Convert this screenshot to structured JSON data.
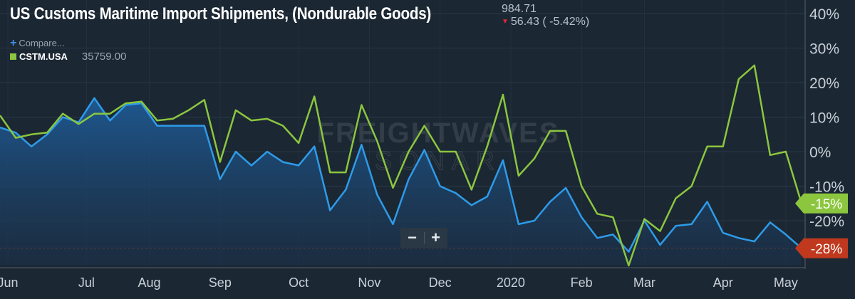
{
  "header": {
    "title": "US Customs Maritime Import Shipments, (Nondurable Goods)",
    "value": "984.71",
    "change": "56.43 ( -5.42%)",
    "compare_label": "Compare...",
    "legend_name": "CSTM.USA",
    "legend_value": "35759.00"
  },
  "watermark": {
    "line1": "FREIGHTWAVES",
    "line2": "SONAR"
  },
  "zoom": {
    "out_label": "−",
    "in_label": "+"
  },
  "colors": {
    "background": "#1b2733",
    "green_series": "#8cc63f",
    "blue_series": "#2e9be8",
    "negative_badge": "#c0391f",
    "grid": "#2a3745"
  },
  "chart_data": {
    "type": "line",
    "title": "US Customs Maritime Import Shipments, (Nondurable Goods)",
    "x_unit": "weekly observations",
    "x_tick_labels": [
      {
        "label": "Jun",
        "index": 0.5
      },
      {
        "label": "Jul",
        "index": 5.5
      },
      {
        "label": "Aug",
        "index": 9.5
      },
      {
        "label": "Sep",
        "index": 14
      },
      {
        "label": "Oct",
        "index": 19
      },
      {
        "label": "Nov",
        "index": 23.5
      },
      {
        "label": "Dec",
        "index": 28
      },
      {
        "label": "2020",
        "index": 32.5
      },
      {
        "label": "Feb",
        "index": 37
      },
      {
        "label": "Mar",
        "index": 41
      },
      {
        "label": "Apr",
        "index": 46
      },
      {
        "label": "May",
        "index": 50
      }
    ],
    "y_ticks": [
      40,
      30,
      20,
      10,
      0,
      -10,
      -20
    ],
    "y_tick_labels": [
      "40%",
      "30%",
      "20%",
      "10%",
      "0%",
      "-10%",
      "-20%"
    ],
    "ylim": [
      -33,
      45
    ],
    "grid": true,
    "series": [
      {
        "name": "CSTM.USA",
        "color": "#8cc63f",
        "end_label": "-15%",
        "values": [
          10.5,
          4,
          5,
          5.5,
          11,
          8,
          11,
          11,
          14,
          14.5,
          9,
          9.5,
          12,
          15,
          -3,
          12,
          9,
          9.5,
          7.5,
          2.5,
          16,
          -6,
          -6,
          13.5,
          3,
          -10.5,
          0,
          7.5,
          0,
          0,
          -11,
          1.5,
          16.5,
          -7,
          -2,
          6,
          6,
          -10,
          -18,
          -19,
          -33,
          -19.5,
          -23,
          -13.5,
          -10,
          1.5,
          1.5,
          21,
          25,
          -1,
          0,
          -15
        ]
      },
      {
        "name": "",
        "color": "#2e9be8",
        "end_label": "-28%",
        "values": [
          7,
          5.5,
          1.5,
          5,
          10,
          8.5,
          15.5,
          9,
          13.5,
          14,
          7.5,
          7.5,
          7.5,
          7.5,
          -8,
          0,
          -4,
          0,
          -3,
          -4,
          1.5,
          -17,
          -11,
          2,
          -12.5,
          -21,
          -8,
          0.5,
          -10,
          -12,
          -15.5,
          -13,
          -2.5,
          -21,
          -20,
          -14.5,
          -10.5,
          -19,
          -25,
          -24,
          -29,
          -20,
          -27,
          -21.5,
          -21,
          -14.5,
          -23.5,
          -25,
          -26,
          -20.5,
          -24,
          -28
        ]
      }
    ],
    "reference_line": {
      "value": -28,
      "color": "#c0391f",
      "style": "dashed"
    }
  }
}
